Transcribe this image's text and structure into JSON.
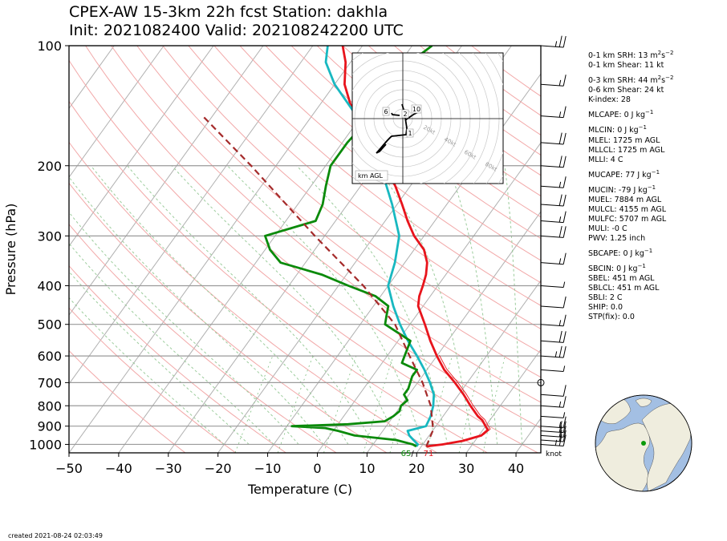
{
  "header": {
    "title_line1": "CPEX-AW 15-3km  22h fcst  Station: dakhla",
    "title_line2": "Init: 2021082400  Valid: 202108242200 UTC"
  },
  "stats": [
    {
      "text": "0-1 km SRH: 13 m",
      "sup": "2",
      "tail": "s",
      "sup2": "−2"
    },
    {
      "text": "0-1 km Shear: 11 kt"
    },
    {
      "text": "0-3 km SRH: 44 m",
      "sup": "2",
      "tail": "s",
      "sup2": "−2"
    },
    {
      "text": "0-6 km Shear: 24 kt"
    },
    {
      "text": "K-index: 28"
    },
    {
      "text": "MLCAPE: 0 J kg",
      "sup": "−1"
    },
    {
      "text": "MLCIN: 0 J kg",
      "sup": "−1"
    },
    {
      "text": "MLEL: 1725 m AGL"
    },
    {
      "text": "MLLCL: 1725 m AGL"
    },
    {
      "text": "MLLI: 4 C"
    },
    {
      "text": "MUCAPE: 77 J kg",
      "sup": "−1"
    },
    {
      "text": "MUCIN: -79 J kg",
      "sup": "−1"
    },
    {
      "text": "MUEL: 7884 m AGL"
    },
    {
      "text": "MULCL: 4155 m AGL"
    },
    {
      "text": "MULFC: 5707 m AGL"
    },
    {
      "text": "MULI: -0 C"
    },
    {
      "text": "PWV: 1.25 inch"
    },
    {
      "text": "SBCAPE: 0 J kg",
      "sup": "−1"
    },
    {
      "text": "SBCIN: 0 J kg",
      "sup": "−1"
    },
    {
      "text": "SBEL: 451 m AGL"
    },
    {
      "text": "SBLCL: 451 m AGL"
    },
    {
      "text": "SBLI: 2 C"
    },
    {
      "text": "SHIP: 0.0"
    },
    {
      "text": "STP(fix): 0.0"
    }
  ],
  "footer": "created 2021-08-24 02:03:49",
  "chart_data": {
    "type": "line",
    "subtype": "skew-T log-p sounding",
    "xlabel": "Temperature (C)",
    "ylabel": "Pressure (hPa)",
    "xlim": [
      -50,
      45
    ],
    "ylim": [
      1050,
      100
    ],
    "xticks": [
      -50,
      -40,
      -30,
      -20,
      -10,
      0,
      10,
      20,
      30,
      40
    ],
    "yticks": [
      100,
      200,
      300,
      400,
      500,
      600,
      700,
      800,
      900,
      1000
    ],
    "yscale": "log",
    "grid": true,
    "series": [
      {
        "role": "temperature",
        "color": "#e8141c",
        "points": [
          [
            1012,
            21
          ],
          [
            1000,
            24
          ],
          [
            980,
            27.5
          ],
          [
            950,
            30.5
          ],
          [
            920,
            31
          ],
          [
            900,
            30
          ],
          [
            870,
            28.5
          ],
          [
            850,
            27
          ],
          [
            800,
            24
          ],
          [
            750,
            21
          ],
          [
            700,
            17.5
          ],
          [
            650,
            13.5
          ],
          [
            600,
            10
          ],
          [
            550,
            6.5
          ],
          [
            500,
            3
          ],
          [
            450,
            -1
          ],
          [
            425,
            -2.2
          ],
          [
            400,
            -3
          ],
          [
            375,
            -4
          ],
          [
            350,
            -5.5
          ],
          [
            325,
            -8
          ],
          [
            300,
            -12
          ],
          [
            275,
            -15.5
          ],
          [
            250,
            -19
          ],
          [
            225,
            -23
          ],
          [
            200,
            -28
          ],
          [
            175,
            -34
          ],
          [
            150,
            -41
          ],
          [
            140,
            -44
          ],
          [
            125,
            -48
          ],
          [
            110,
            -51
          ],
          [
            100,
            -54
          ]
        ]
      },
      {
        "role": "dewpoint",
        "color": "#18b8c0",
        "points": [
          [
            1012,
            19
          ],
          [
            1000,
            19
          ],
          [
            975,
            17.5
          ],
          [
            950,
            16
          ],
          [
            925,
            15
          ],
          [
            900,
            18
          ],
          [
            850,
            17.5
          ],
          [
            800,
            16.5
          ],
          [
            750,
            15
          ],
          [
            700,
            12.5
          ],
          [
            650,
            9.5
          ],
          [
            600,
            6
          ],
          [
            550,
            2
          ],
          [
            500,
            -2
          ],
          [
            450,
            -6
          ],
          [
            400,
            -10
          ],
          [
            350,
            -12
          ],
          [
            300,
            -15
          ],
          [
            250,
            -21
          ],
          [
            200,
            -29
          ],
          [
            150,
            -41
          ],
          [
            125,
            -50
          ],
          [
            110,
            -55
          ],
          [
            100,
            -57
          ]
        ]
      },
      {
        "role": "wetbulb",
        "color": "#0a8a0a",
        "points": [
          [
            1012,
            19
          ],
          [
            1000,
            18
          ],
          [
            975,
            14
          ],
          [
            950,
            5
          ],
          [
            925,
            1
          ],
          [
            910,
            -2
          ],
          [
            900,
            -9
          ],
          [
            890,
            2
          ],
          [
            875,
            9
          ],
          [
            850,
            10
          ],
          [
            825,
            10.5
          ],
          [
            800,
            10
          ],
          [
            775,
            10.5
          ],
          [
            750,
            9
          ],
          [
            725,
            9
          ],
          [
            700,
            8.5
          ],
          [
            675,
            8
          ],
          [
            650,
            8
          ],
          [
            625,
            4
          ],
          [
            600,
            3.5
          ],
          [
            550,
            2.5
          ],
          [
            500,
            -5
          ],
          [
            475,
            -6
          ],
          [
            450,
            -7
          ],
          [
            425,
            -11
          ],
          [
            400,
            -18
          ],
          [
            375,
            -25
          ],
          [
            350,
            -35
          ],
          [
            325,
            -39
          ],
          [
            300,
            -42
          ],
          [
            275,
            -34
          ],
          [
            250,
            -35
          ],
          [
            225,
            -37
          ],
          [
            200,
            -39
          ],
          [
            175,
            -39
          ],
          [
            150,
            -38
          ],
          [
            140,
            -39
          ],
          [
            125,
            -40
          ],
          [
            110,
            -38
          ],
          [
            100,
            -36
          ]
        ]
      },
      {
        "role": "parcel",
        "color": "#a52a2a",
        "dashed": true,
        "points": [
          [
            1012,
            21
          ],
          [
            920,
            20
          ],
          [
            800,
            16
          ],
          [
            700,
            11
          ],
          [
            600,
            4.5
          ],
          [
            500,
            -3
          ],
          [
            400,
            -15
          ],
          [
            300,
            -32
          ],
          [
            200,
            -55
          ],
          [
            150,
            -72
          ]
        ]
      }
    ],
    "surface_labels": {
      "dewpoint": "65",
      "temperature": "71"
    },
    "wind_barbs": [
      {
        "p": 1000,
        "speed": 25
      },
      {
        "p": 975,
        "speed": 20
      },
      {
        "p": 950,
        "speed": 20
      },
      {
        "p": 925,
        "speed": 20
      },
      {
        "p": 900,
        "speed": 15
      },
      {
        "p": 850,
        "speed": 5
      },
      {
        "p": 800,
        "speed": 15
      },
      {
        "p": 750,
        "speed": 10
      },
      {
        "p": 700,
        "speed": 0
      },
      {
        "p": 650,
        "speed": 5
      },
      {
        "p": 600,
        "speed": 25
      },
      {
        "p": 550,
        "speed": 20
      },
      {
        "p": 500,
        "speed": 15
      },
      {
        "p": 450,
        "speed": 10
      },
      {
        "p": 400,
        "speed": 5
      },
      {
        "p": 350,
        "speed": 15
      },
      {
        "p": 300,
        "speed": 20
      },
      {
        "p": 275,
        "speed": 15
      },
      {
        "p": 250,
        "speed": 20
      },
      {
        "p": 225,
        "speed": 15
      },
      {
        "p": 200,
        "speed": 20
      },
      {
        "p": 175,
        "speed": 20
      },
      {
        "p": 150,
        "speed": 15
      },
      {
        "p": 125,
        "speed": 15
      },
      {
        "p": 100,
        "speed": 25
      }
    ],
    "wind_units": "knot",
    "hodograph": {
      "rings": [
        "20kt",
        "40kt",
        "60kt",
        "80kt"
      ],
      "height_units": "km AGL",
      "labels": [
        "1",
        "2",
        "6",
        "10"
      ]
    }
  }
}
